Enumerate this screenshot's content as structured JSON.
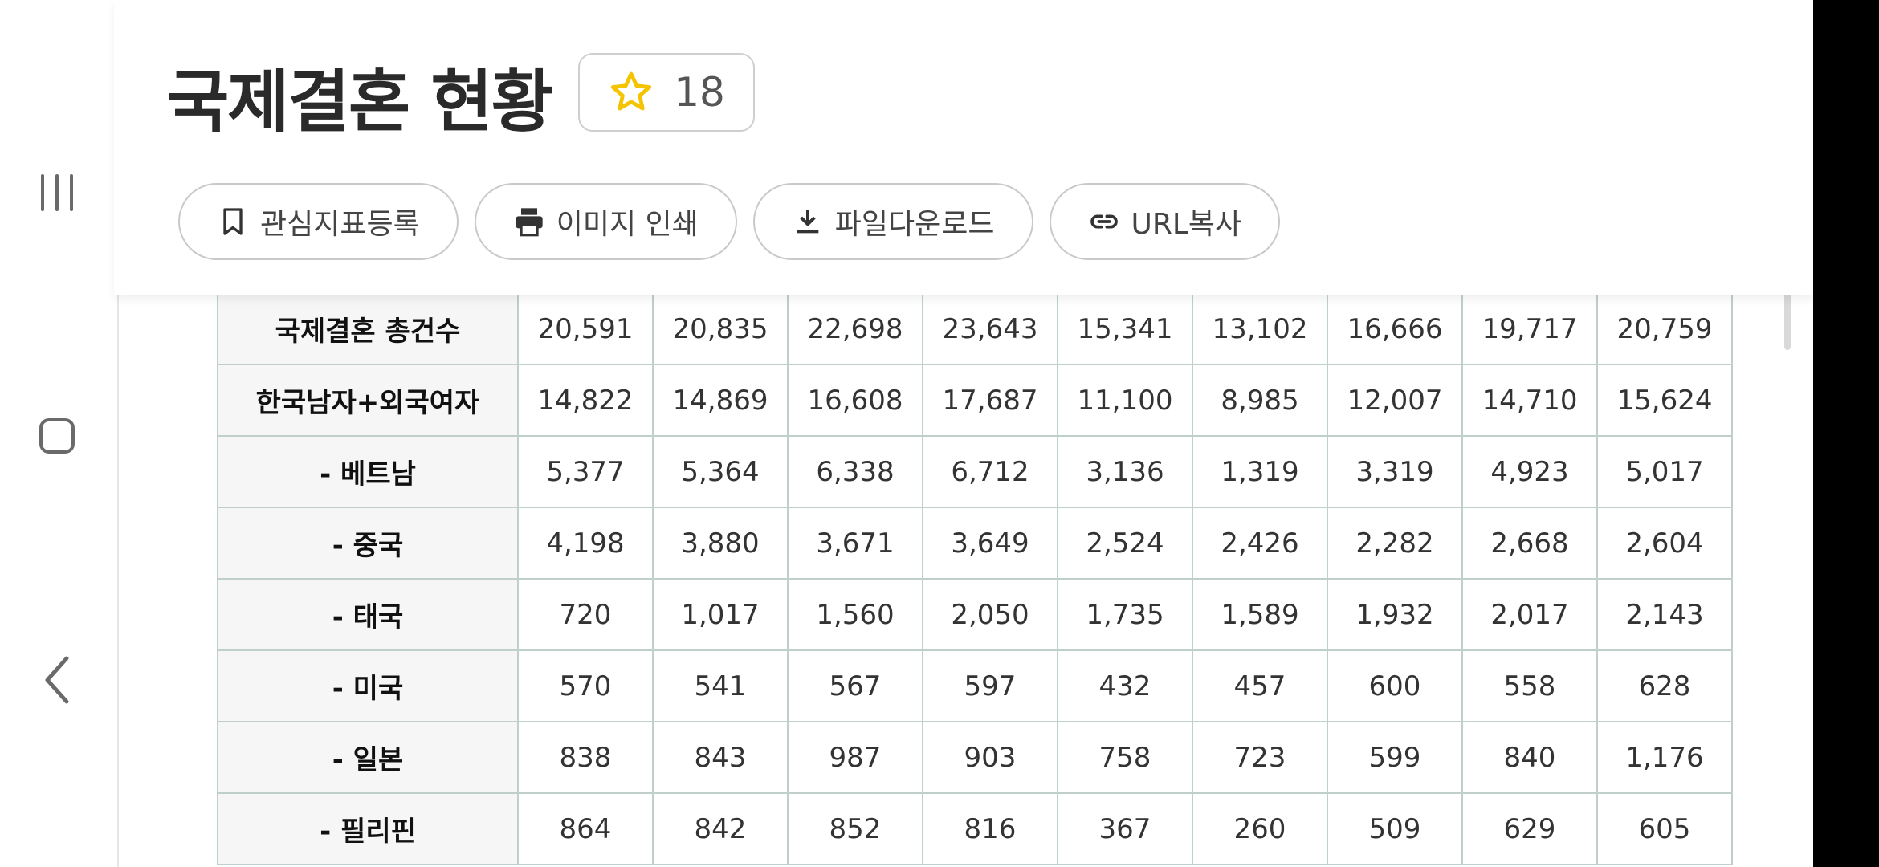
{
  "page": {
    "title": "국제결혼 현황",
    "favorite_count": "18"
  },
  "actions": [
    {
      "label": "관심지표등록",
      "icon": "bookmark-icon"
    },
    {
      "label": "이미지 인쇄",
      "icon": "printer-icon"
    },
    {
      "label": "파일다운로드",
      "icon": "download-icon"
    },
    {
      "label": "URL복사",
      "icon": "link-icon"
    }
  ],
  "table": {
    "rows": [
      {
        "label": "국제결혼 총건수",
        "values": [
          "20,591",
          "20,835",
          "22,698",
          "23,643",
          "15,341",
          "13,102",
          "16,666",
          "19,717",
          "20,759"
        ]
      },
      {
        "label": "한국남자+외국여자",
        "values": [
          "14,822",
          "14,869",
          "16,608",
          "17,687",
          "11,100",
          "8,985",
          "12,007",
          "14,710",
          "15,624"
        ]
      },
      {
        "label": "- 베트남",
        "values": [
          "5,377",
          "5,364",
          "6,338",
          "6,712",
          "3,136",
          "1,319",
          "3,319",
          "4,923",
          "5,017"
        ]
      },
      {
        "label": "- 중국",
        "values": [
          "4,198",
          "3,880",
          "3,671",
          "3,649",
          "2,524",
          "2,426",
          "2,282",
          "2,668",
          "2,604"
        ]
      },
      {
        "label": "- 태국",
        "values": [
          "720",
          "1,017",
          "1,560",
          "2,050",
          "1,735",
          "1,589",
          "1,932",
          "2,017",
          "2,143"
        ]
      },
      {
        "label": "- 미국",
        "values": [
          "570",
          "541",
          "567",
          "597",
          "432",
          "457",
          "600",
          "558",
          "628"
        ]
      },
      {
        "label": "- 일본",
        "values": [
          "838",
          "843",
          "987",
          "903",
          "758",
          "723",
          "599",
          "840",
          "1,176"
        ]
      },
      {
        "label": "- 필리핀",
        "values": [
          "864",
          "842",
          "852",
          "816",
          "367",
          "260",
          "509",
          "629",
          "605"
        ]
      }
    ]
  },
  "nav": [
    "recent-apps-icon",
    "home-icon",
    "back-icon"
  ],
  "colors": {
    "star": "#f4c400",
    "table_border": "#bfcfcc",
    "header_bg": "#f6f6f6"
  }
}
